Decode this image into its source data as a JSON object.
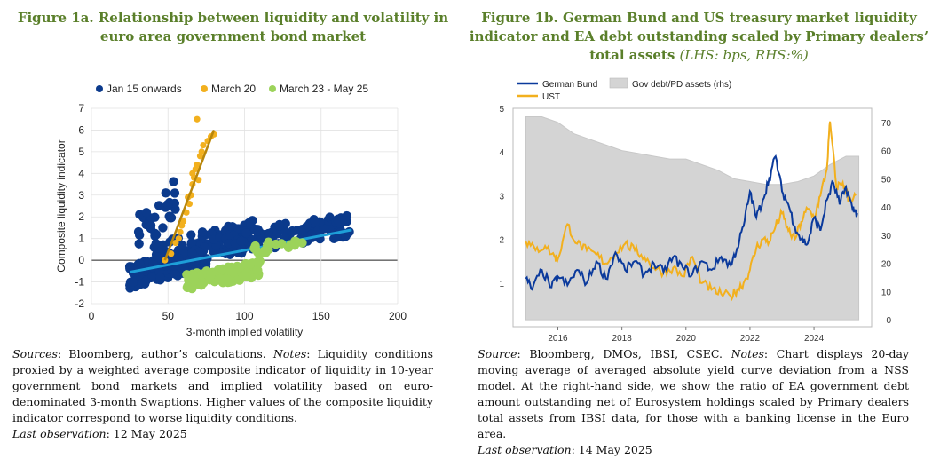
{
  "left": {
    "title": "Figure 1a.  Relationship between liquidity and volatility in euro area government bond market",
    "sources_label": "Sources",
    "sources_text": ": Bloomberg, author’s calculations. ",
    "notes_label": "Notes",
    "notes_text": ": Liquidity conditions proxied by a weighted average composite indicator of liquidity in 10-year government bond markets and implied volatility based on euro-denominated 3-month Swaptions. Higher values of the composite liquidity indicator correspond to worse liquidity conditions.",
    "last_label": "Last observation",
    "last_text": ": 12 May 2025",
    "chart_data": {
      "type": "scatter",
      "xlabel": "3-month implied volatility",
      "ylabel": "Composite liquidity indicator",
      "xlim": [
        0,
        200
      ],
      "ylim": [
        -2,
        7
      ],
      "x_ticks": [
        "0",
        "50",
        "100",
        "150",
        "200"
      ],
      "y_ticks": [
        "-2",
        "-1",
        "0",
        "1",
        "2",
        "3",
        "4",
        "5",
        "6",
        "7"
      ],
      "legend_position": "top",
      "colors": {
        "jan15": "#0b3a8c",
        "march20": "#f2b01e",
        "may25": "#9cd35a",
        "fit_jan15": "#1e9fd8",
        "fit_march20": "#b8860b"
      },
      "series": [
        {
          "name": "Jan 15 onwards",
          "clouds": [
            {
              "x0": 25,
              "x1": 75,
              "y0": -1.2,
              "y1": 0.6,
              "n": 260
            },
            {
              "x0": 40,
              "x1": 110,
              "y0": -0.4,
              "y1": 1.8,
              "n": 150
            },
            {
              "x0": 90,
              "x1": 170,
              "y0": 0.3,
              "y1": 2.1,
              "n": 130
            },
            {
              "x0": 30,
              "x1": 55,
              "y0": 0.5,
              "y1": 3.6,
              "n": 30
            }
          ]
        },
        {
          "name": "March 20",
          "points": [
            [
              48,
              0
            ],
            [
              52,
              0.3
            ],
            [
              55,
              0.8
            ],
            [
              58,
              1.3
            ],
            [
              60,
              1.8
            ],
            [
              62,
              2.2
            ],
            [
              64,
              2.6
            ],
            [
              65,
              3.0
            ],
            [
              66,
              3.5
            ],
            [
              67,
              3.8
            ],
            [
              68,
              4.2
            ],
            [
              69,
              4.4
            ],
            [
              70,
              3.7
            ],
            [
              71,
              4.8
            ],
            [
              72,
              5.0
            ],
            [
              73,
              5.3
            ],
            [
              76,
              5.5
            ],
            [
              78,
              5.7
            ],
            [
              80,
              5.8
            ],
            [
              69,
              6.5
            ],
            [
              66,
              4.0
            ],
            [
              63,
              2.9
            ],
            [
              59,
              1.6
            ],
            [
              57,
              1.0
            ]
          ]
        },
        {
          "name": "March 23 - May 25",
          "clouds": [
            {
              "x0": 62,
              "x1": 110,
              "y0": -1.3,
              "y1": -0.1,
              "n": 130
            },
            {
              "x0": 105,
              "x1": 145,
              "y0": 0.3,
              "y1": 1.1,
              "n": 20
            }
          ]
        }
      ],
      "fit_lines": [
        {
          "series": "Jan 15 onwards",
          "x": [
            25,
            170
          ],
          "y": [
            -0.55,
            1.4
          ]
        },
        {
          "series": "March 20",
          "x": [
            48,
            80
          ],
          "y": [
            0.0,
            6.0
          ]
        }
      ]
    }
  },
  "right": {
    "title": "Figure 1b. German Bund and US treasury market liquidity indicator and EA debt outstanding scaled by Primary dealers’ total assets",
    "title_units": "(LHS: bps, RHS:%)",
    "sources_label": "Source",
    "sources_text": ": Bloomberg, DMOs, IBSI, CSEC. ",
    "notes_label": "Notes",
    "notes_text": ": Chart displays 20-day moving average of averaged absolute yield curve deviation from a NSS model. At the right-hand side, we show the ratio of EA government debt amount outstanding net of Eurosystem holdings scaled by Primary dealers total assets from IBSI data, for those with a banking license in the Euro area.",
    "last_label": "Last observation",
    "last_text": ": 14 May 2025",
    "chart_data": {
      "type": "line",
      "legend_position": "top-left",
      "x_ticks": [
        "2016",
        "2018",
        "2020",
        "2022",
        "2024"
      ],
      "xlim": [
        2014.6,
        2025.8
      ],
      "ylim_left": [
        0,
        5
      ],
      "ylim_right": [
        -2.5,
        75
      ],
      "left_ticks": [
        "1",
        "2",
        "3",
        "4",
        "5"
      ],
      "right_ticks": [
        "0",
        "10",
        "20",
        "30",
        "40",
        "50",
        "60",
        "70"
      ],
      "colors": {
        "bund": "#0b3a9c",
        "ust": "#f2b01e",
        "area": "#d4d4d4"
      },
      "series": [
        {
          "name": "Gov debt/PD assets (rhs)",
          "type": "area",
          "axis": "right",
          "x": [
            2015.0,
            2015.5,
            2016.0,
            2016.5,
            2017.0,
            2017.5,
            2018.0,
            2018.5,
            2019.0,
            2019.5,
            2020.0,
            2020.5,
            2021.0,
            2021.5,
            2022.0,
            2022.5,
            2023.0,
            2023.5,
            2024.0,
            2024.5,
            2025.0,
            2025.4
          ],
          "y": [
            72,
            72,
            70,
            66,
            64,
            62,
            60,
            59,
            58,
            57,
            57,
            55,
            53,
            50,
            49,
            48,
            48,
            49,
            51,
            55,
            58,
            58
          ]
        },
        {
          "name": "German Bund",
          "type": "line",
          "axis": "left",
          "x": [
            2015.0,
            2015.2,
            2015.5,
            2015.8,
            2016.0,
            2016.3,
            2016.6,
            2016.9,
            2017.2,
            2017.5,
            2017.8,
            2018.1,
            2018.4,
            2018.7,
            2019.0,
            2019.3,
            2019.6,
            2019.9,
            2020.2,
            2020.5,
            2020.8,
            2021.1,
            2021.4,
            2021.6,
            2021.8,
            2022.0,
            2022.2,
            2022.4,
            2022.6,
            2022.8,
            2023.0,
            2023.2,
            2023.4,
            2023.6,
            2023.8,
            2024.0,
            2024.2,
            2024.4,
            2024.6,
            2024.8,
            2025.0,
            2025.2,
            2025.35
          ],
          "y": [
            1.1,
            0.85,
            1.3,
            0.9,
            1.15,
            0.95,
            1.3,
            1.0,
            1.5,
            1.1,
            1.7,
            1.3,
            1.5,
            1.2,
            1.45,
            1.25,
            1.6,
            1.35,
            1.2,
            1.5,
            1.3,
            1.6,
            1.4,
            1.8,
            2.3,
            3.1,
            2.5,
            2.9,
            3.4,
            3.9,
            3.1,
            2.8,
            2.3,
            2.0,
            1.9,
            2.5,
            2.2,
            2.9,
            3.3,
            2.8,
            3.2,
            2.7,
            2.6
          ]
        },
        {
          "name": "UST",
          "type": "line",
          "axis": "left",
          "x": [
            2015.0,
            2015.3,
            2015.6,
            2015.9,
            2016.0,
            2016.3,
            2016.6,
            2016.9,
            2017.2,
            2017.5,
            2017.8,
            2018.1,
            2018.4,
            2018.7,
            2019.0,
            2019.3,
            2019.6,
            2019.9,
            2020.2,
            2020.5,
            2020.8,
            2021.1,
            2021.4,
            2021.6,
            2021.8,
            2022.0,
            2022.2,
            2022.4,
            2022.6,
            2022.8,
            2023.0,
            2023.2,
            2023.4,
            2023.6,
            2023.8,
            2024.0,
            2024.2,
            2024.4,
            2024.5,
            2024.7,
            2024.9,
            2025.1,
            2025.3
          ],
          "y": [
            1.95,
            1.75,
            1.85,
            1.6,
            1.55,
            2.35,
            1.9,
            1.75,
            1.65,
            1.45,
            1.7,
            1.9,
            1.75,
            1.6,
            1.35,
            1.25,
            1.35,
            1.15,
            1.6,
            1.0,
            0.85,
            0.75,
            0.7,
            0.85,
            1.0,
            1.3,
            1.8,
            2.0,
            1.95,
            2.3,
            2.6,
            2.2,
            2.0,
            2.4,
            2.7,
            2.5,
            3.0,
            3.6,
            4.7,
            3.2,
            3.3,
            2.9,
            3.0
          ]
        }
      ]
    }
  }
}
